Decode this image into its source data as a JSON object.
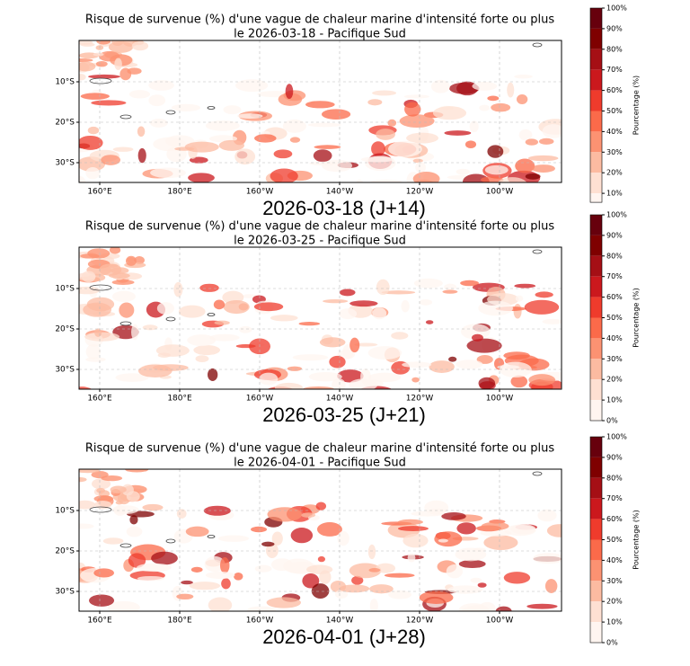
{
  "panels": [
    {
      "title": [
        "Risque de survenue (%) d'une vague de chaleur marine d'intensité forte ou plus",
        "le 2026-03-18 - Pacifique Sud"
      ],
      "y_labels": [
        "10°S",
        "20°S",
        "30°S"
      ],
      "x_labels": [
        "160°E",
        "180°E",
        "160°W",
        "140°W",
        "120°W",
        "100°W"
      ],
      "caption": "2026-03-18 (J+14)",
      "colorbar_label": "Pourcentage (%)",
      "colorbar_ticks": [
        "100%",
        "90%",
        "80%",
        "70%",
        "60%",
        "50%",
        "40%",
        "30%",
        "20%",
        "10%"
      ]
    },
    {
      "title": [
        "Risque de survenue (%) d'une vague de chaleur marine d'intensité forte ou plus",
        "le 2026-03-25 - Pacifique Sud"
      ],
      "y_labels": [
        "10°S",
        "20°S",
        "30°S"
      ],
      "x_labels": [
        "160°E",
        "180°E",
        "160°W",
        "140°W",
        "120°W",
        "100°W"
      ],
      "caption": "2026-03-25 (J+21)",
      "colorbar_label": "Pourcentage (%)",
      "colorbar_ticks": [
        "100%",
        "90%",
        "80%",
        "70%",
        "60%",
        "50%",
        "40%",
        "30%",
        "20%",
        "10%",
        "0%"
      ]
    },
    {
      "title": [
        "Risque de survenue (%) d'une vague de chaleur marine d'intensité forte ou plus",
        "le 2026-04-01 - Pacifique Sud"
      ],
      "y_labels": [
        "10°S",
        "20°S",
        "30°S"
      ],
      "x_labels": [
        "160°E",
        "180°E",
        "160°W",
        "140°W",
        "120°W",
        "100°W"
      ],
      "caption": "2026-04-01 (J+28)",
      "colorbar_label": "Pourcentage (%)",
      "colorbar_ticks": [
        "100%",
        "90%",
        "80%",
        "70%",
        "60%",
        "50%",
        "40%",
        "30%",
        "20%",
        "10%",
        "0%"
      ]
    }
  ]
}
